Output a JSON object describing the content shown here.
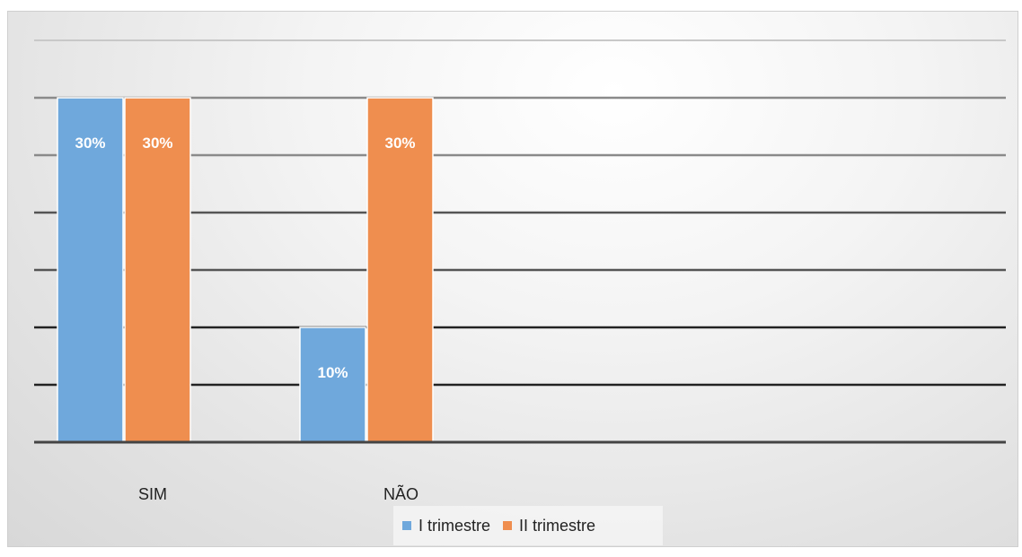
{
  "chart_data": {
    "type": "bar",
    "title": "",
    "xlabel": "",
    "ylabel": "",
    "categories": [
      "SIM",
      "NÃO"
    ],
    "series": [
      {
        "name": "I trimestre",
        "color": "#6fa8dc",
        "values": [
          30,
          10
        ],
        "labels": [
          "30%",
          "10%"
        ]
      },
      {
        "name": "II trimestre",
        "color": "#ef8e4f",
        "values": [
          30,
          30
        ],
        "labels": [
          "30%",
          "30%"
        ]
      }
    ],
    "ylim": [
      0,
      35
    ],
    "grid": true,
    "legend_position": "bottom",
    "axis_tick_labels_shown": false
  }
}
